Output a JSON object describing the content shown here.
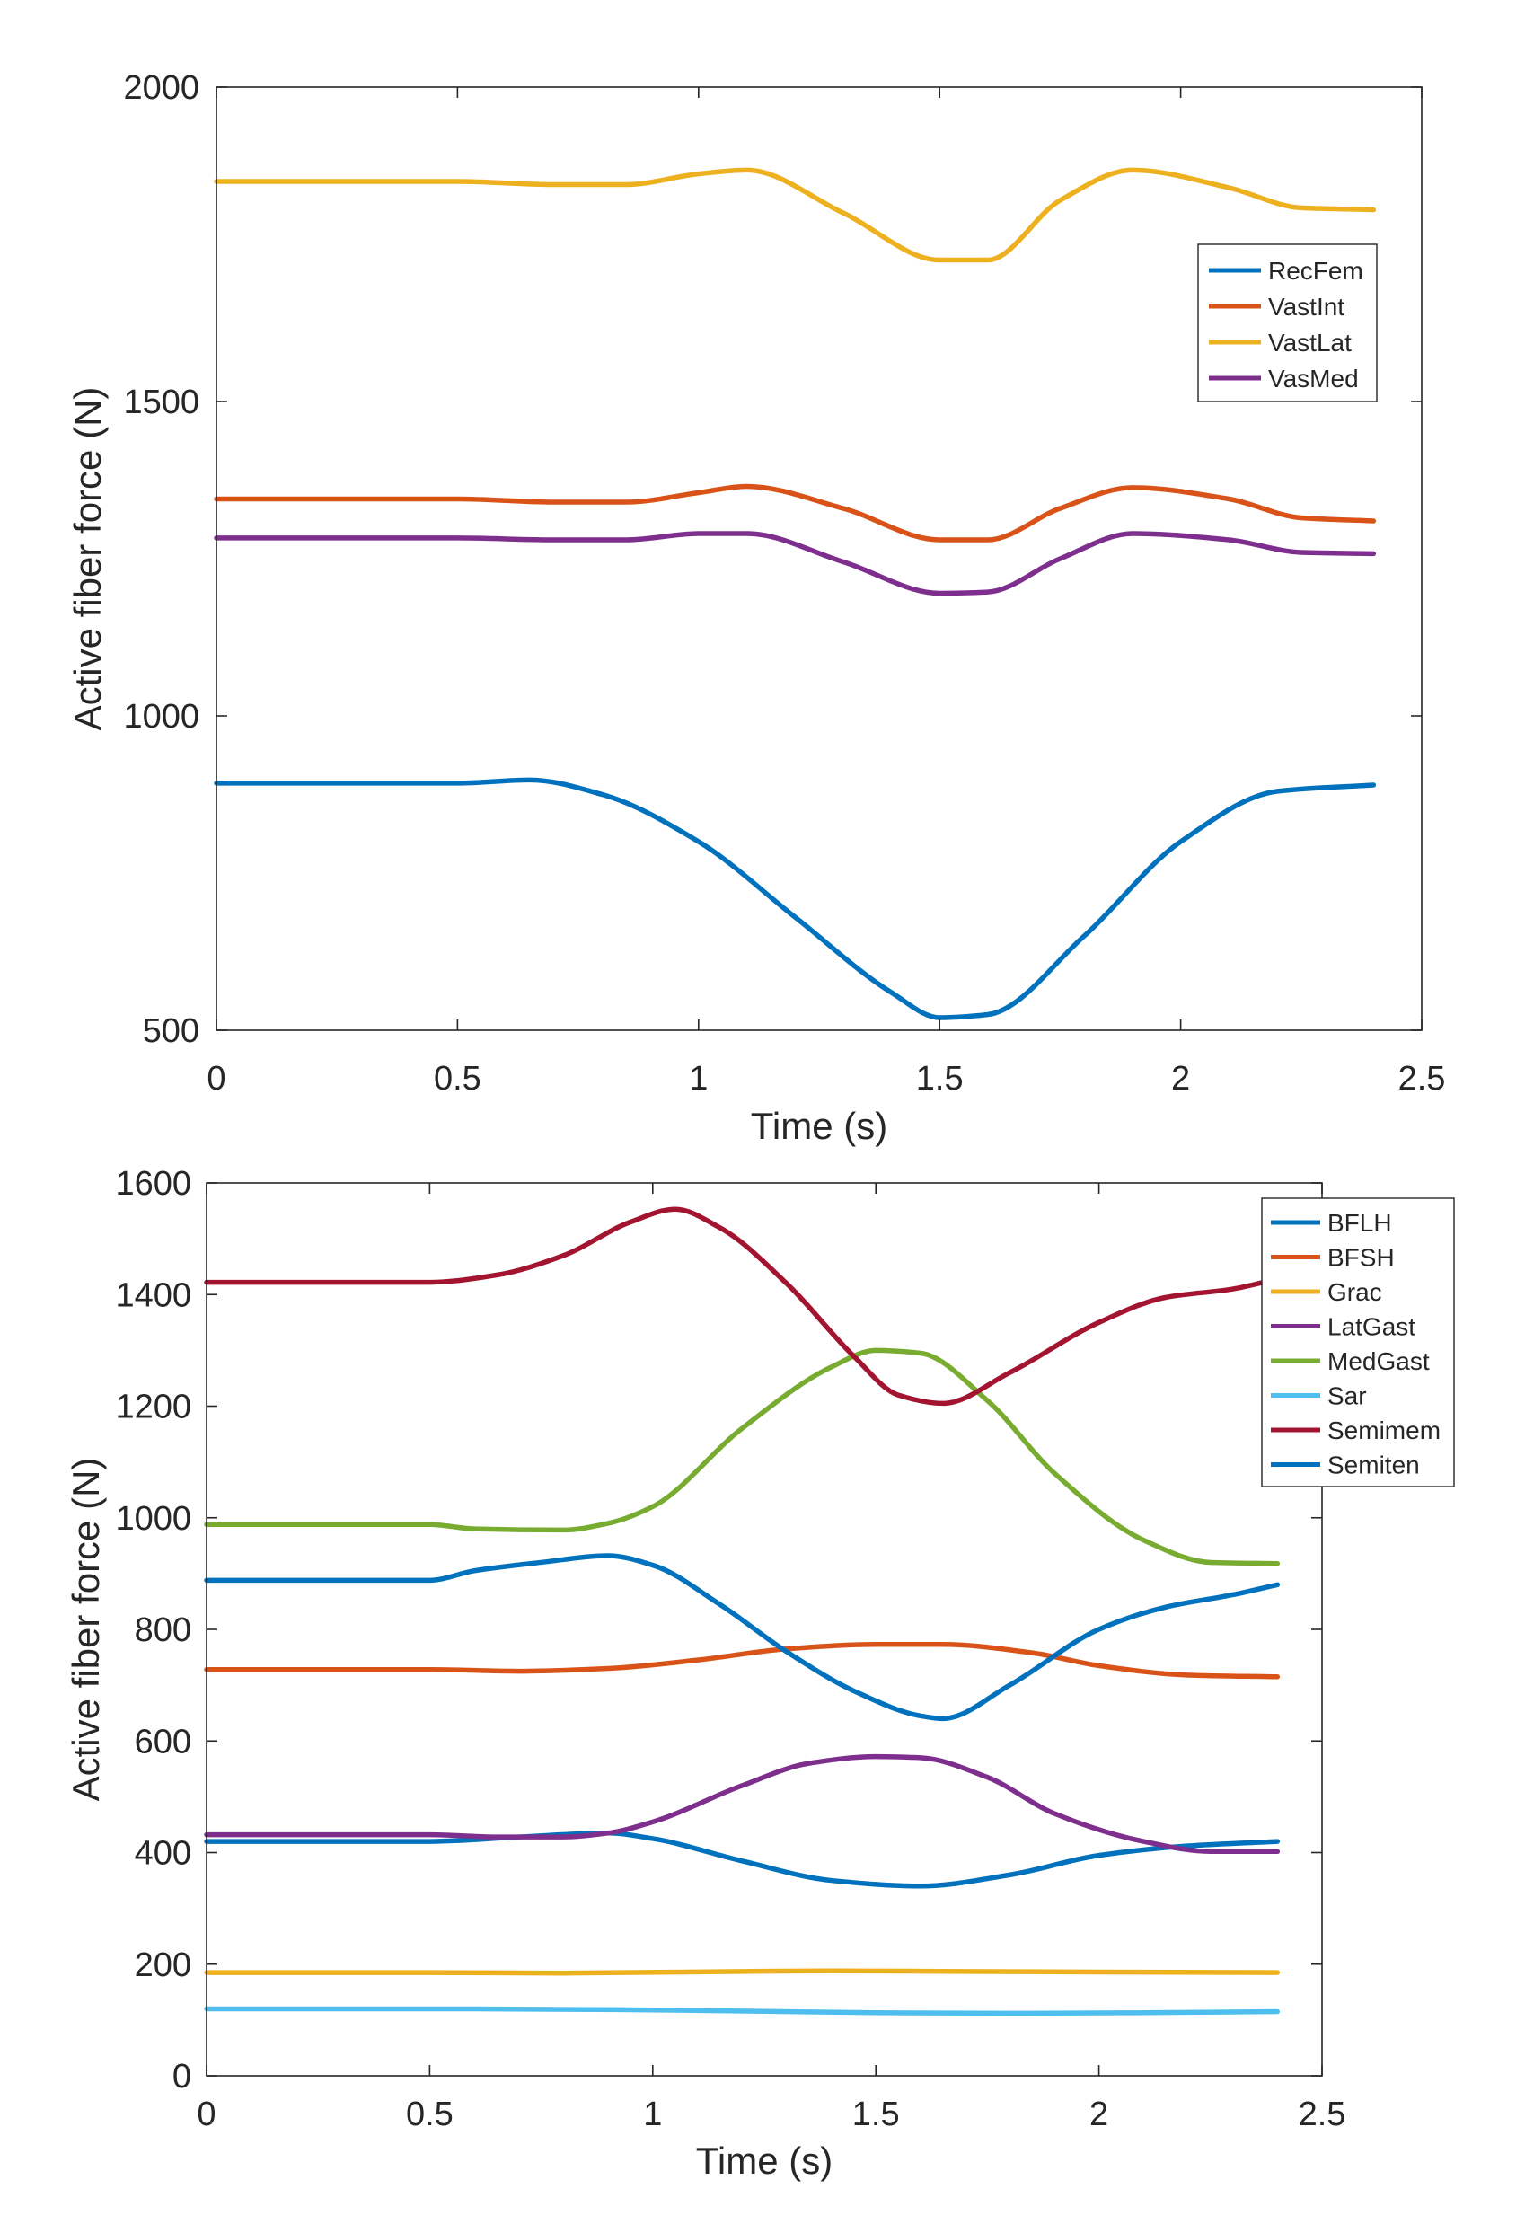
{
  "chart_data": [
    {
      "type": "line",
      "title": "",
      "xlabel": "Time (s)",
      "ylabel": "Active fiber force (N)",
      "xlim": [
        0,
        2.5
      ],
      "ylim": [
        500,
        2000
      ],
      "xticks": [
        0,
        0.5,
        1,
        1.5,
        2,
        2.5
      ],
      "xtick_labels": [
        "0",
        "0.5",
        "1",
        "1.5",
        "2",
        "2.5"
      ],
      "yticks": [
        500,
        1000,
        1500,
        2000
      ],
      "ytick_labels": [
        "500",
        "1000",
        "1500",
        "2000"
      ],
      "grid": false,
      "legend_position": "right",
      "series": [
        {
          "name": "RecFem",
          "color": "#0072BD",
          "x": [
            0,
            0.2,
            0.5,
            0.65,
            0.8,
            1.0,
            1.2,
            1.4,
            1.5,
            1.6,
            1.8,
            2.0,
            2.2,
            2.4
          ],
          "y": [
            893,
            893,
            893,
            898,
            875,
            800,
            680,
            560,
            520,
            525,
            650,
            800,
            880,
            890
          ]
        },
        {
          "name": "VastInt",
          "color": "#D95319",
          "x": [
            0,
            0.5,
            0.7,
            0.85,
            1.0,
            1.1,
            1.3,
            1.5,
            1.6,
            1.75,
            1.9,
            2.1,
            2.25,
            2.4
          ],
          "y": [
            1345,
            1345,
            1340,
            1340,
            1355,
            1365,
            1330,
            1280,
            1280,
            1330,
            1363,
            1345,
            1315,
            1310
          ]
        },
        {
          "name": "VastLat",
          "color": "#EDB120",
          "x": [
            0,
            0.5,
            0.7,
            0.85,
            1.0,
            1.1,
            1.3,
            1.5,
            1.6,
            1.75,
            1.9,
            2.1,
            2.25,
            2.4
          ],
          "y": [
            1850,
            1850,
            1845,
            1845,
            1862,
            1868,
            1800,
            1725,
            1725,
            1820,
            1868,
            1840,
            1808,
            1805
          ]
        },
        {
          "name": "VasMed",
          "color": "#7E2F8E",
          "x": [
            0,
            0.5,
            0.7,
            0.85,
            1.0,
            1.1,
            1.3,
            1.5,
            1.6,
            1.75,
            1.9,
            2.1,
            2.25,
            2.4
          ],
          "y": [
            1283,
            1283,
            1280,
            1280,
            1290,
            1290,
            1245,
            1195,
            1197,
            1250,
            1290,
            1280,
            1260,
            1258
          ]
        }
      ]
    },
    {
      "type": "line",
      "title": "",
      "xlabel": "Time (s)",
      "ylabel": "Active fiber force (N)",
      "xlim": [
        0,
        2.5
      ],
      "ylim": [
        0,
        1600
      ],
      "xticks": [
        0,
        0.5,
        1,
        1.5,
        2,
        2.5
      ],
      "xtick_labels": [
        "0",
        "0.5",
        "1",
        "1.5",
        "2",
        "2.5"
      ],
      "yticks": [
        0,
        200,
        400,
        600,
        800,
        1000,
        1200,
        1400,
        1600
      ],
      "ytick_labels": [
        "0",
        "200",
        "400",
        "600",
        "800",
        "1000",
        "1200",
        "1400",
        "1600"
      ],
      "grid": false,
      "legend_position": "top-right",
      "series": [
        {
          "name": "BFLH",
          "color": "#0072BD",
          "x": [
            0,
            0.5,
            0.7,
            0.9,
            1.0,
            1.2,
            1.4,
            1.6,
            1.8,
            2.0,
            2.2,
            2.4
          ],
          "y": [
            420,
            420,
            428,
            435,
            425,
            385,
            350,
            340,
            360,
            395,
            412,
            420
          ]
        },
        {
          "name": "BFSH",
          "color": "#D95319",
          "x": [
            0,
            0.5,
            0.7,
            0.9,
            1.1,
            1.3,
            1.5,
            1.65,
            1.85,
            2.0,
            2.2,
            2.4
          ],
          "y": [
            728,
            728,
            725,
            730,
            745,
            765,
            773,
            773,
            758,
            735,
            718,
            715
          ]
        },
        {
          "name": "Grac",
          "color": "#EDB120",
          "x": [
            0,
            0.5,
            0.8,
            1.2,
            1.4,
            1.7,
            2.0,
            2.4
          ],
          "y": [
            185,
            185,
            184,
            187,
            188,
            187,
            186,
            185
          ]
        },
        {
          "name": "LatGast",
          "color": "#7E2F8E",
          "x": [
            0,
            0.5,
            0.65,
            0.8,
            0.9,
            1.0,
            1.2,
            1.35,
            1.5,
            1.6,
            1.75,
            1.9,
            2.1,
            2.25,
            2.4
          ],
          "y": [
            432,
            432,
            428,
            428,
            435,
            455,
            520,
            560,
            572,
            570,
            535,
            470,
            420,
            402,
            402
          ]
        },
        {
          "name": "MedGast",
          "color": "#77AC30",
          "x": [
            0,
            0.5,
            0.6,
            0.8,
            0.9,
            1.0,
            1.2,
            1.4,
            1.5,
            1.6,
            1.75,
            1.9,
            2.1,
            2.25,
            2.4
          ],
          "y": [
            988,
            988,
            980,
            978,
            990,
            1020,
            1160,
            1270,
            1300,
            1295,
            1210,
            1080,
            960,
            920,
            918
          ]
        },
        {
          "name": "Sar",
          "color": "#4DBEEE",
          "x": [
            0,
            0.6,
            1.0,
            1.5,
            1.8,
            2.1,
            2.4
          ],
          "y": [
            120,
            120,
            118,
            113,
            112,
            113,
            115
          ]
        },
        {
          "name": "Semimem",
          "color": "#A2142F",
          "x": [
            0,
            0.5,
            0.65,
            0.8,
            0.95,
            1.05,
            1.15,
            1.3,
            1.45,
            1.55,
            1.65,
            1.8,
            2.0,
            2.15,
            2.3,
            2.4
          ],
          "y": [
            1422,
            1422,
            1435,
            1470,
            1530,
            1553,
            1520,
            1420,
            1290,
            1220,
            1205,
            1260,
            1350,
            1395,
            1410,
            1428
          ]
        },
        {
          "name": "Semiten",
          "color": "#0072BD",
          "x": [
            0,
            0.5,
            0.6,
            0.75,
            0.9,
            1.0,
            1.15,
            1.3,
            1.45,
            1.6,
            1.65,
            1.8,
            2.0,
            2.15,
            2.3,
            2.4
          ],
          "y": [
            888,
            888,
            905,
            920,
            932,
            915,
            845,
            760,
            690,
            645,
            640,
            700,
            800,
            840,
            862,
            880
          ]
        }
      ]
    }
  ]
}
